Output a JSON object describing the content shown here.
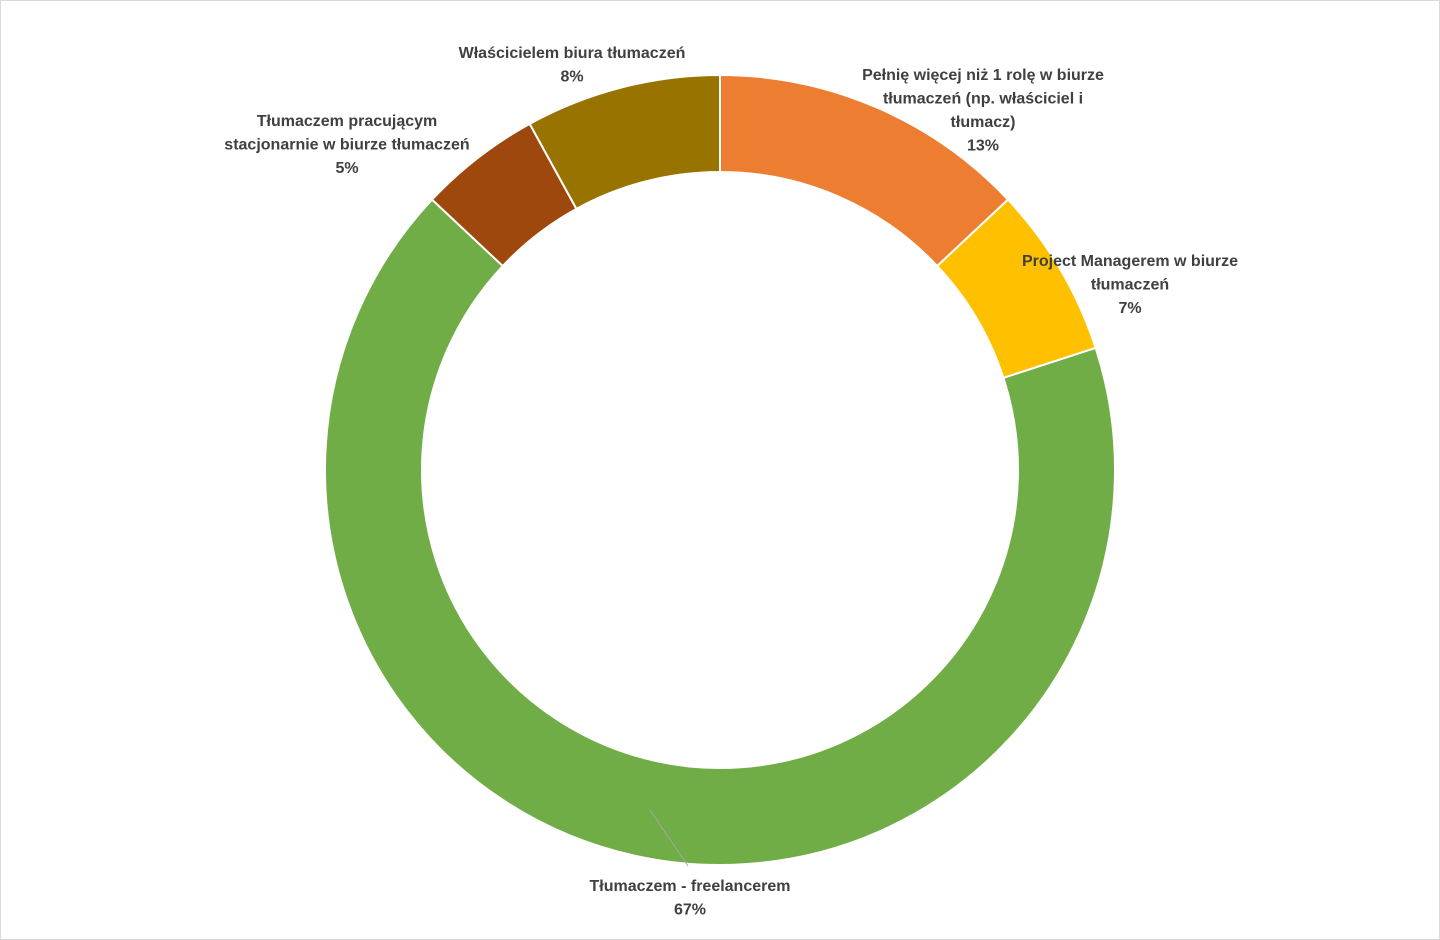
{
  "chart_data": {
    "type": "pie",
    "variant": "doughnut",
    "title": "",
    "slices": [
      {
        "name": "Pełnię więcej niż 1 rolę w biurze tłumaczeń (np. właściciel i tłumacz)",
        "value": 13,
        "label_lines": [
          "Pełnię więcej niż 1 rolę w biurze",
          "tłumaczeń (np. właściciel i",
          "tłumacz)"
        ],
        "pct": "13%",
        "color": "#ed7d31"
      },
      {
        "name": "Project Managerem w biurze tłumaczeń",
        "value": 7,
        "label_lines": [
          "Project Managerem w biurze",
          "tłumaczeń"
        ],
        "pct": "7%",
        "color": "#ffc000"
      },
      {
        "name": "Tłumaczem - freelancerem",
        "value": 67,
        "label_lines": [
          "Tłumaczem - freelancerem"
        ],
        "pct": "67%",
        "color": "#70ad47"
      },
      {
        "name": "Tłumaczem pracującym stacjonarnie w biurze tłumaczeń",
        "value": 5,
        "label_lines": [
          "Tłumaczem pracującym",
          "stacjonarnie w biurze tłumaczeń"
        ],
        "pct": "5%",
        "color": "#9e480e"
      },
      {
        "name": "Właścicielem biura tłumaczeń",
        "value": 8,
        "label_lines": [
          "Właścicielem biura tłumaczeń"
        ],
        "pct": "8%",
        "color": "#997300"
      }
    ],
    "legend": "none",
    "data_labels": "outside"
  }
}
